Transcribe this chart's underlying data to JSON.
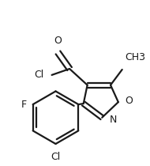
{
  "bg_color": "#ffffff",
  "line_color": "#1a1a1a",
  "line_width": 1.6,
  "font_size": 8.5,
  "label_F": "F",
  "label_Cl_bottom": "Cl",
  "label_Cl_acid": "Cl",
  "label_O_carbonyl": "O",
  "label_N": "N",
  "label_O_ring": "O",
  "label_CH3": "CH3"
}
